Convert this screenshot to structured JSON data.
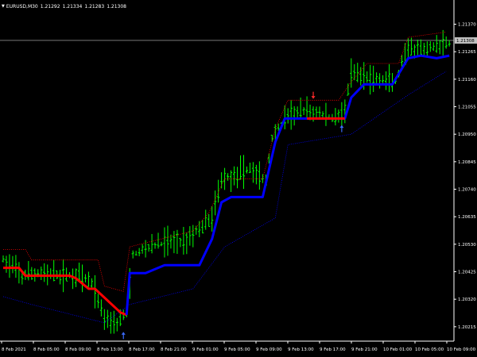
{
  "window": {
    "symbol_label": "EURUSD,M30",
    "ohlc": [
      "1.21292",
      "1.21334",
      "1.21283",
      "1.21308"
    ]
  },
  "colors": {
    "background": "#000000",
    "bar_up": "#00ff00",
    "bar_down": "#00ff00",
    "trend_up": "#0000ff",
    "trend_down": "#ff0000",
    "upper_band": "#ff0000",
    "lower_band": "#0000ff",
    "price_line": "#c0c0c0",
    "axis_text": "#ffffff",
    "arrow_up": "#3b6cff",
    "arrow_down": "#ff2a2a"
  },
  "chart_data": {
    "type": "line",
    "ylim": [
      1.2016,
      1.2142
    ],
    "price_axis": {
      "ticks": [
        "1.21370",
        "1.21265",
        "1.21160",
        "1.21055",
        "1.20950",
        "1.20845",
        "1.20740",
        "1.20635",
        "1.20530",
        "1.20425",
        "1.20320",
        "1.20215"
      ],
      "current_price": "1.21308"
    },
    "time_axis": {
      "ticks": [
        "8 Feb 2021",
        "8 Feb 05:00",
        "8 Feb 09:00",
        "8 Feb 13:00",
        "8 Feb 17:00",
        "8 Feb 21:00",
        "9 Feb 01:00",
        "9 Feb 05:00",
        "9 Feb 09:00",
        "9 Feb 13:00",
        "9 Feb 17:00",
        "9 Feb 21:00",
        "10 Feb 01:00",
        "10 Feb 05:00",
        "10 Feb 09:00"
      ]
    },
    "bars_approx": {
      "count": 142,
      "anchors": [
        [
          0,
          1.2047
        ],
        [
          6,
          1.2041
        ],
        [
          12,
          1.2042
        ],
        [
          18,
          1.2041
        ],
        [
          24,
          1.2041
        ],
        [
          28,
          1.2038
        ],
        [
          32,
          1.2025
        ],
        [
          36,
          1.2023
        ],
        [
          39,
          1.2027
        ],
        [
          41,
          1.2049
        ],
        [
          46,
          1.2052
        ],
        [
          52,
          1.2054
        ],
        [
          57,
          1.2054
        ],
        [
          61,
          1.2058
        ],
        [
          66,
          1.2063
        ],
        [
          69,
          1.2078
        ],
        [
          73,
          1.2079
        ],
        [
          78,
          1.2082
        ],
        [
          83,
          1.2077
        ],
        [
          85,
          1.2094
        ],
        [
          90,
          1.2102
        ],
        [
          95,
          1.2104
        ],
        [
          100,
          1.2103
        ],
        [
          104,
          1.2101
        ],
        [
          108,
          1.2104
        ],
        [
          110,
          1.2118
        ],
        [
          114,
          1.2117
        ],
        [
          118,
          1.2116
        ],
        [
          124,
          1.2115
        ],
        [
          128,
          1.2127
        ],
        [
          133,
          1.2127
        ],
        [
          137,
          1.2129
        ],
        [
          141,
          1.213
        ]
      ]
    },
    "series": [
      {
        "values": [
          [
            0,
            1.2044
          ],
          [
            5,
            1.2044
          ],
          [
            7,
            1.2041
          ],
          [
            14,
            1.2041
          ],
          [
            21,
            1.2041
          ],
          [
            23,
            1.204
          ],
          [
            27,
            1.2036
          ],
          [
            29,
            1.2036
          ],
          [
            37,
            1.2027
          ],
          [
            39,
            1.2026
          ]
        ]
      },
      {
        "values": [
          [
            39,
            1.2026
          ],
          [
            40,
            1.2042
          ],
          [
            45,
            1.2042
          ],
          [
            51,
            1.2045
          ],
          [
            62,
            1.2045
          ],
          [
            66,
            1.2055
          ],
          [
            69,
            1.2069
          ],
          [
            72,
            1.2071
          ],
          [
            82,
            1.2071
          ],
          [
            86,
            1.2092
          ],
          [
            89,
            1.2101
          ],
          [
            97,
            1.2101
          ],
          [
            99,
            1.2101
          ],
          [
            108,
            1.2101
          ],
          [
            110,
            1.2109
          ],
          [
            114,
            1.2114
          ],
          [
            123,
            1.2114
          ],
          [
            128,
            1.2124
          ],
          [
            132,
            1.2125
          ],
          [
            137,
            1.2124
          ],
          [
            141,
            1.2125
          ]
        ]
      },
      {
        "values": [
          [
            96,
            1.2101
          ],
          [
            108,
            1.2101
          ]
        ]
      },
      {
        "values": [
          [
            0,
            1.2051
          ],
          [
            7,
            1.2051
          ],
          [
            9,
            1.2047
          ],
          [
            30,
            1.2047
          ],
          [
            32,
            1.2037
          ],
          [
            38,
            1.2035
          ],
          [
            40,
            1.2052
          ],
          [
            60,
            1.2058
          ],
          [
            65,
            1.2065
          ],
          [
            70,
            1.2078
          ],
          [
            82,
            1.2078
          ],
          [
            86,
            1.2097
          ],
          [
            90,
            1.2108
          ],
          [
            106,
            1.2108
          ],
          [
            110,
            1.2115
          ],
          [
            115,
            1.2122
          ],
          [
            125,
            1.2122
          ],
          [
            128,
            1.2132
          ],
          [
            140,
            1.2134
          ]
        ]
      },
      {
        "values": [
          [
            0,
            1.2033
          ],
          [
            9,
            1.203
          ],
          [
            32,
            1.2023
          ],
          [
            40,
            1.203
          ],
          [
            60,
            1.2036
          ],
          [
            70,
            1.2052
          ],
          [
            86,
            1.2063
          ],
          [
            90,
            1.2091
          ],
          [
            110,
            1.2095
          ],
          [
            128,
            1.211
          ],
          [
            140,
            1.2119
          ]
        ]
      }
    ],
    "signals": [
      {
        "type": "up",
        "x": 38,
        "y": 1.2018
      },
      {
        "type": "up",
        "x": 107,
        "y": 1.2097
      },
      {
        "type": "down",
        "x": 98,
        "y": 1.211
      }
    ]
  }
}
